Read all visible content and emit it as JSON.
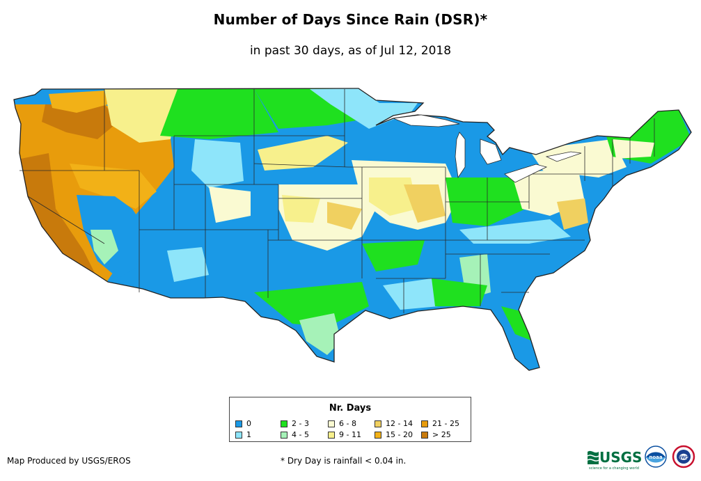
{
  "title": "Number of Days Since Rain (DSR)*",
  "subtitle": "in past 30 days, as of Jul 12, 2018",
  "legend": {
    "title": "Nr. Days",
    "items": [
      {
        "label": "0",
        "color": "#1a99e6"
      },
      {
        "label": "1",
        "color": "#8ee5fa"
      },
      {
        "label": "2 - 3",
        "color": "#1fe01f"
      },
      {
        "label": "4 - 5",
        "color": "#a6f2b8"
      },
      {
        "label": "6 - 8",
        "color": "#fafad2"
      },
      {
        "label": "9 - 11",
        "color": "#f7f08c"
      },
      {
        "label": "12 - 14",
        "color": "#f0d060"
      },
      {
        "label": "15 - 20",
        "color": "#f2b117"
      },
      {
        "label": "21 - 25",
        "color": "#e89c0c"
      },
      {
        "label": "> 25",
        "color": "#c87a0c"
      }
    ]
  },
  "credit": "Map Produced by USGS/EROS",
  "footnote": "* Dry Day is rainfall < 0.04 in.",
  "logos": {
    "usgs": "USGS",
    "usgs_tagline": "science for a changing world",
    "noaa": "noaa",
    "nws": "NWS"
  }
}
